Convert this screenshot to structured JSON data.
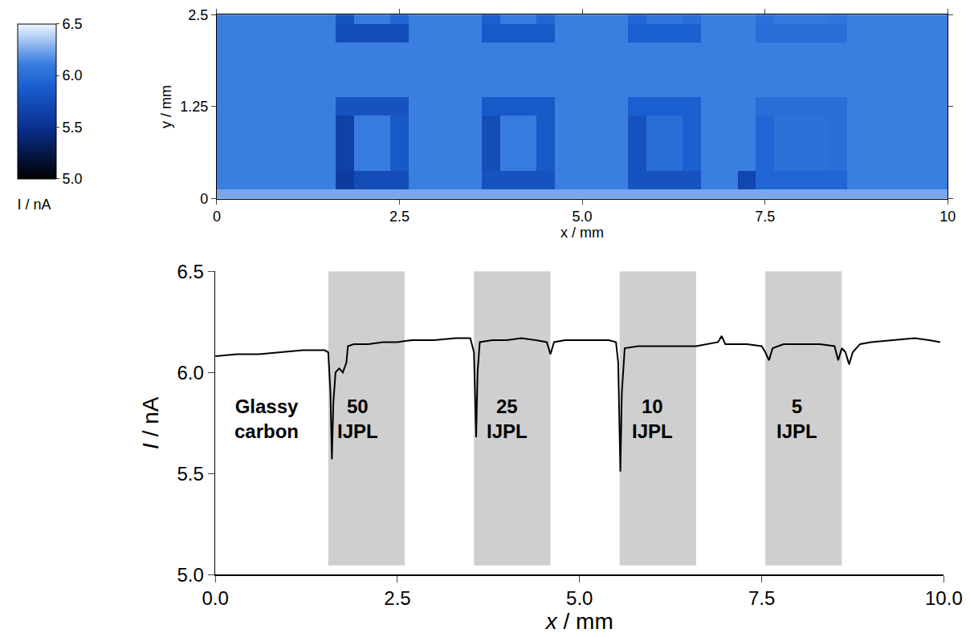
{
  "chart_data": [
    {
      "type": "heatmap",
      "x": [
        0,
        0.25,
        0.5,
        0.75,
        1,
        1.25,
        1.5,
        1.75,
        2,
        2.25,
        2.5,
        2.75,
        3,
        3.25,
        3.5,
        3.75,
        4,
        4.25,
        4.5,
        4.75,
        5,
        5.25,
        5.5,
        5.75,
        6,
        6.25,
        6.5,
        6.75,
        7,
        7.25,
        7.5,
        7.75,
        8,
        8.25,
        8.5,
        8.75,
        9,
        9.25,
        9.5,
        9.75,
        10
      ],
      "y": [
        0,
        0.25,
        0.5,
        0.75,
        1,
        1.25,
        1.5,
        1.75,
        2,
        2.25,
        2.5
      ],
      "cells": [
        [
          6.25,
          6.25,
          6.25,
          6.25,
          6.25,
          6.25,
          6.25,
          6.25,
          6.25,
          6.25,
          6.25,
          6.25,
          6.25,
          6.25,
          6.25,
          6.25,
          6.25,
          6.25,
          6.25,
          6.25,
          6.25,
          6.25,
          6.25,
          6.25,
          6.25,
          6.25,
          6.25,
          6.25,
          6.25,
          6.25,
          6.25,
          6.25,
          6.25,
          6.25,
          6.25,
          6.25,
          6.25,
          6.25,
          6.25,
          6.25,
          6.25
        ],
        [
          6.12,
          6.12,
          6.12,
          6.12,
          6.12,
          6.12,
          6.12,
          5.6,
          5.75,
          5.75,
          5.75,
          6.12,
          6.12,
          6.12,
          6.12,
          5.8,
          5.8,
          5.8,
          5.8,
          6.12,
          6.12,
          6.12,
          6.12,
          5.8,
          5.8,
          5.8,
          5.8,
          6.12,
          6.12,
          5.7,
          5.95,
          5.95,
          5.95,
          5.95,
          5.95,
          6.12,
          6.12,
          6.12,
          6.12,
          6.12,
          6.12
        ],
        [
          6.12,
          6.12,
          6.12,
          6.12,
          6.12,
          6.12,
          6.12,
          5.65,
          6.1,
          6.1,
          5.85,
          6.12,
          6.12,
          6.12,
          6.12,
          5.75,
          6.1,
          6.1,
          5.85,
          6.12,
          6.12,
          6.12,
          6.12,
          5.8,
          6.0,
          6.0,
          5.9,
          6.12,
          6.12,
          6.12,
          5.95,
          6.02,
          6.02,
          6.02,
          6.0,
          6.12,
          6.12,
          6.12,
          6.12,
          6.12,
          6.12
        ],
        [
          6.12,
          6.12,
          6.12,
          6.12,
          6.12,
          6.12,
          6.12,
          5.65,
          6.1,
          6.1,
          5.85,
          6.12,
          6.12,
          6.12,
          6.12,
          5.75,
          6.1,
          6.1,
          5.85,
          6.12,
          6.12,
          6.12,
          6.12,
          5.8,
          6.0,
          6.0,
          5.9,
          6.12,
          6.12,
          6.12,
          5.95,
          6.02,
          6.02,
          6.02,
          6.0,
          6.12,
          6.12,
          6.12,
          6.12,
          6.12,
          6.12
        ],
        [
          6.12,
          6.12,
          6.12,
          6.12,
          6.12,
          6.12,
          6.12,
          5.65,
          6.1,
          6.1,
          5.85,
          6.12,
          6.12,
          6.12,
          6.12,
          5.75,
          6.1,
          6.1,
          5.85,
          6.12,
          6.12,
          6.12,
          6.12,
          5.8,
          6.0,
          6.0,
          5.9,
          6.12,
          6.12,
          6.12,
          5.95,
          6.02,
          6.02,
          6.02,
          6.0,
          6.12,
          6.12,
          6.12,
          6.12,
          6.12,
          6.12
        ],
        [
          6.12,
          6.12,
          6.12,
          6.12,
          6.12,
          6.12,
          6.12,
          5.8,
          5.8,
          5.8,
          5.8,
          6.12,
          6.12,
          6.12,
          6.12,
          5.85,
          5.85,
          5.85,
          5.85,
          6.12,
          6.12,
          6.12,
          6.12,
          5.9,
          5.9,
          5.9,
          5.9,
          6.12,
          6.12,
          6.12,
          6.0,
          6.0,
          6.0,
          6.0,
          6.0,
          6.12,
          6.12,
          6.12,
          6.12,
          6.12,
          6.12
        ],
        [
          6.12,
          6.12,
          6.12,
          6.12,
          6.12,
          6.12,
          6.12,
          6.12,
          6.12,
          6.12,
          6.12,
          6.12,
          6.12,
          6.12,
          6.12,
          6.12,
          6.12,
          6.12,
          6.12,
          6.12,
          6.12,
          6.12,
          6.12,
          6.12,
          6.12,
          6.12,
          6.12,
          6.12,
          6.12,
          6.12,
          6.12,
          6.12,
          6.12,
          6.12,
          6.12,
          6.12,
          6.12,
          6.12,
          6.12,
          6.12,
          6.12
        ],
        [
          6.12,
          6.12,
          6.12,
          6.12,
          6.12,
          6.12,
          6.12,
          6.12,
          6.12,
          6.12,
          6.12,
          6.12,
          6.12,
          6.12,
          6.12,
          6.12,
          6.12,
          6.12,
          6.12,
          6.12,
          6.12,
          6.12,
          6.12,
          6.12,
          6.12,
          6.12,
          6.12,
          6.12,
          6.12,
          6.12,
          6.12,
          6.12,
          6.12,
          6.12,
          6.12,
          6.12,
          6.12,
          6.12,
          6.12,
          6.12,
          6.12
        ],
        [
          6.12,
          6.12,
          6.12,
          6.12,
          6.12,
          6.12,
          6.12,
          6.12,
          6.12,
          6.12,
          6.12,
          6.12,
          6.12,
          6.12,
          6.12,
          6.12,
          6.12,
          6.12,
          6.12,
          6.12,
          6.12,
          6.12,
          6.12,
          6.12,
          6.12,
          6.12,
          6.12,
          6.12,
          6.12,
          6.12,
          6.12,
          6.12,
          6.12,
          6.12,
          6.12,
          6.12,
          6.12,
          6.12,
          6.12,
          6.12,
          6.12
        ],
        [
          6.12,
          6.12,
          6.12,
          6.12,
          6.12,
          6.12,
          6.12,
          5.75,
          5.75,
          5.75,
          5.75,
          6.12,
          6.12,
          6.12,
          6.12,
          5.85,
          5.85,
          5.85,
          5.85,
          6.12,
          6.12,
          6.12,
          6.12,
          5.9,
          5.9,
          5.9,
          5.9,
          6.12,
          6.12,
          6.12,
          6.0,
          6.0,
          6.0,
          6.0,
          6.0,
          6.12,
          6.12,
          6.12,
          6.12,
          6.12,
          6.12
        ],
        [
          6.12,
          6.12,
          6.12,
          6.12,
          6.12,
          6.12,
          6.12,
          5.8,
          6.1,
          6.1,
          5.95,
          6.12,
          6.12,
          6.12,
          6.12,
          5.9,
          6.1,
          6.1,
          5.95,
          6.12,
          6.12,
          6.12,
          6.12,
          5.95,
          6.05,
          6.05,
          6.0,
          6.12,
          6.12,
          6.12,
          6.02,
          6.08,
          6.08,
          6.08,
          6.05,
          6.12,
          6.12,
          6.12,
          6.12,
          6.12,
          6.12
        ]
      ],
      "xlim": [
        0,
        10
      ],
      "ylim": [
        0,
        2.5
      ],
      "xticks": [
        0,
        2.5,
        {
          "value": 5,
          "label": "5.0"
        },
        7.5,
        10
      ],
      "yticks": [
        0,
        1.25,
        2.5
      ],
      "x_label": "x / mm",
      "y_label": "y / mm",
      "colorbar": {
        "title": "I / nA",
        "range": [
          5,
          6.5
        ],
        "ticks": [
          {
            "value": 5,
            "label": "5.0"
          },
          5.5,
          {
            "value": 6,
            "label": "6.0"
          },
          6.5
        ]
      }
    },
    {
      "type": "line",
      "color": "#000000",
      "x": [
        0.0,
        0.3,
        0.6,
        0.9,
        1.2,
        1.4,
        1.5,
        1.55,
        1.58,
        1.6,
        1.62,
        1.65,
        1.7,
        1.75,
        1.8,
        1.82,
        1.9,
        2.1,
        2.3,
        2.5,
        2.7,
        3.0,
        3.3,
        3.5,
        3.55,
        3.58,
        3.6,
        3.63,
        3.8,
        4.0,
        4.2,
        4.4,
        4.55,
        4.6,
        4.65,
        4.8,
        5.0,
        5.2,
        5.4,
        5.5,
        5.53,
        5.56,
        5.58,
        5.62,
        5.8,
        6.0,
        6.3,
        6.6,
        6.9,
        6.95,
        7.0,
        7.3,
        7.5,
        7.55,
        7.6,
        7.65,
        7.8,
        8.0,
        8.3,
        8.5,
        8.55,
        8.6,
        8.65,
        8.7,
        8.75,
        8.85,
        9.0,
        9.3,
        9.6,
        9.8,
        9.95
      ],
      "values": [
        6.08,
        6.09,
        6.09,
        6.1,
        6.11,
        6.11,
        6.11,
        6.1,
        5.9,
        5.57,
        5.85,
        6.0,
        6.02,
        6.0,
        6.05,
        6.13,
        6.14,
        6.14,
        6.15,
        6.15,
        6.16,
        6.16,
        6.17,
        6.17,
        6.1,
        5.68,
        6.0,
        6.15,
        6.16,
        6.16,
        6.17,
        6.16,
        6.15,
        6.09,
        6.15,
        6.16,
        6.16,
        6.16,
        6.16,
        6.15,
        6.05,
        5.51,
        5.9,
        6.12,
        6.13,
        6.13,
        6.13,
        6.13,
        6.15,
        6.18,
        6.14,
        6.14,
        6.13,
        6.1,
        6.06,
        6.12,
        6.14,
        6.14,
        6.14,
        6.13,
        6.06,
        6.12,
        6.1,
        6.04,
        6.1,
        6.14,
        6.15,
        6.16,
        6.17,
        6.16,
        6.15
      ],
      "xlim": [
        0,
        10
      ],
      "ylim": [
        5,
        6.5
      ],
      "xticks": [
        {
          "value": 0,
          "label": "0.0"
        },
        2.5,
        {
          "value": 5,
          "label": "5.0"
        },
        7.5,
        {
          "value": 10,
          "label": "10.0"
        }
      ],
      "yticks": [
        {
          "value": 5,
          "label": "5.0"
        },
        5.5,
        {
          "value": 6,
          "label": "6.0"
        },
        6.5
      ],
      "x_label": "x / mm",
      "y_label": "I / nA",
      "bands": [
        [
          1.55,
          2.6
        ],
        [
          3.55,
          4.6
        ],
        [
          5.55,
          6.6
        ],
        [
          7.55,
          8.6
        ]
      ],
      "annotations": [
        {
          "text": "Glassy carbon",
          "x": 0.7,
          "y": 5.77
        },
        {
          "text": "50 IJPL",
          "x": 1.95,
          "y": 5.77
        },
        {
          "text": "25 IJPL",
          "x": 4.0,
          "y": 5.77
        },
        {
          "text": "10 IJPL",
          "x": 6.0,
          "y": 5.77
        },
        {
          "text": "5 IJPL",
          "x": 7.98,
          "y": 5.77
        }
      ]
    }
  ]
}
